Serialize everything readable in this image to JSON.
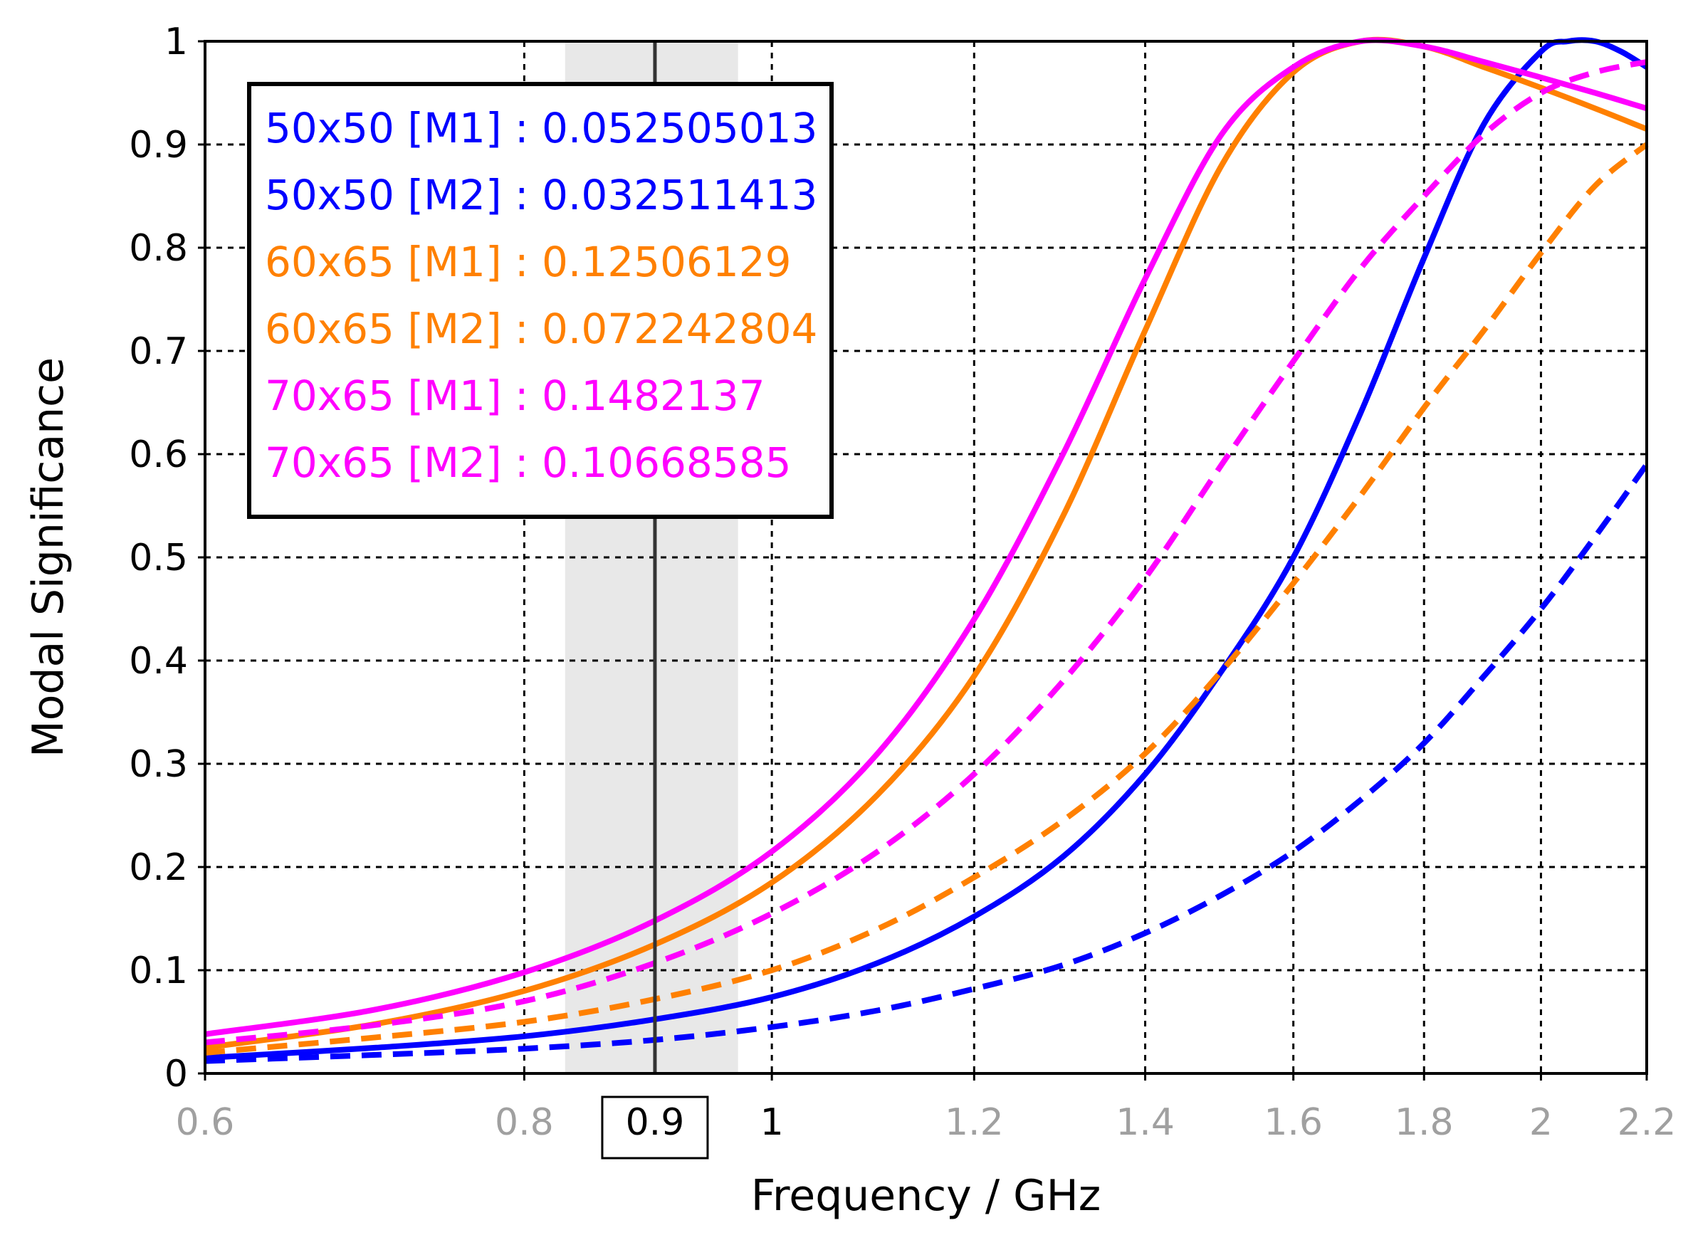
{
  "chart_data": {
    "type": "line",
    "xlabel": "Frequency / GHz",
    "ylabel": "Modal Significance",
    "xscale": "log",
    "xlim": [
      0.6,
      2.2
    ],
    "ylim": [
      0,
      1
    ],
    "grid": true,
    "x_ticks": [
      {
        "label": "0.6",
        "value": 0.6
      },
      {
        "label": "0.8",
        "value": 0.8
      },
      {
        "label": "1",
        "value": 1.0,
        "emphasis": true
      },
      {
        "label": "1.2",
        "value": 1.2
      },
      {
        "label": "1.4",
        "value": 1.4
      },
      {
        "label": "1.6",
        "value": 1.6
      },
      {
        "label": "1.8",
        "value": 1.8
      },
      {
        "label": "2",
        "value": 2.0
      },
      {
        "label": "2.2",
        "value": 2.2
      }
    ],
    "y_ticks": [
      {
        "label": "0",
        "value": 0
      },
      {
        "label": "0.1",
        "value": 0.1
      },
      {
        "label": "0.2",
        "value": 0.2
      },
      {
        "label": "0.3",
        "value": 0.3
      },
      {
        "label": "0.4",
        "value": 0.4
      },
      {
        "label": "0.5",
        "value": 0.5
      },
      {
        "label": "0.6",
        "value": 0.6
      },
      {
        "label": "0.7",
        "value": 0.7
      },
      {
        "label": "0.8",
        "value": 0.8
      },
      {
        "label": "0.9",
        "value": 0.9
      },
      {
        "label": "1",
        "value": 1.0
      }
    ],
    "marker": {
      "value": 0.9,
      "label": "0.9",
      "band": [
        0.83,
        0.97
      ]
    },
    "legend_position": "top-left",
    "series": [
      {
        "name": "50x50 [M1]",
        "readout": "0.052505013",
        "color": "#0000ff",
        "dash": "solid",
        "x": [
          0.6,
          0.7,
          0.8,
          0.9,
          1.0,
          1.1,
          1.2,
          1.3,
          1.4,
          1.5,
          1.6,
          1.7,
          1.8,
          1.9,
          2.0,
          2.05,
          2.1,
          2.15,
          2.2
        ],
        "y": [
          0.015,
          0.025,
          0.036,
          0.0525,
          0.074,
          0.107,
          0.152,
          0.21,
          0.29,
          0.39,
          0.5,
          0.64,
          0.79,
          0.92,
          0.99,
          1.0,
          1.0,
          0.99,
          0.975
        ]
      },
      {
        "name": "50x50 [M2]",
        "readout": "0.032511413",
        "color": "#0000ff",
        "dash": "dashed",
        "x": [
          0.6,
          0.7,
          0.8,
          0.9,
          1.0,
          1.1,
          1.2,
          1.3,
          1.4,
          1.5,
          1.6,
          1.7,
          1.8,
          1.9,
          2.0,
          2.1,
          2.2
        ],
        "y": [
          0.012,
          0.018,
          0.024,
          0.0325,
          0.045,
          0.061,
          0.082,
          0.105,
          0.136,
          0.173,
          0.215,
          0.265,
          0.32,
          0.385,
          0.45,
          0.52,
          0.59
        ]
      },
      {
        "name": "60x65 [M1]",
        "readout": "0.12506129",
        "color": "#ff8000",
        "dash": "solid",
        "x": [
          0.6,
          0.7,
          0.8,
          0.9,
          1.0,
          1.1,
          1.2,
          1.3,
          1.4,
          1.5,
          1.6,
          1.7,
          1.8,
          1.9,
          2.0,
          2.1,
          2.2
        ],
        "y": [
          0.025,
          0.048,
          0.08,
          0.125,
          0.185,
          0.27,
          0.385,
          0.54,
          0.72,
          0.88,
          0.97,
          1.0,
          0.995,
          0.975,
          0.955,
          0.935,
          0.915
        ]
      },
      {
        "name": "60x65 [M2]",
        "readout": "0.072242804",
        "color": "#ff8000",
        "dash": "dashed",
        "x": [
          0.6,
          0.7,
          0.8,
          0.9,
          1.0,
          1.1,
          1.2,
          1.3,
          1.4,
          1.5,
          1.6,
          1.7,
          1.8,
          1.9,
          2.0,
          2.1,
          2.2
        ],
        "y": [
          0.02,
          0.035,
          0.05,
          0.072,
          0.1,
          0.14,
          0.19,
          0.245,
          0.31,
          0.39,
          0.475,
          0.56,
          0.645,
          0.72,
          0.795,
          0.86,
          0.9
        ]
      },
      {
        "name": "70x65 [M1]",
        "readout": "0.1482137",
        "color": "#ff00ff",
        "dash": "solid",
        "x": [
          0.6,
          0.7,
          0.8,
          0.9,
          1.0,
          1.1,
          1.2,
          1.3,
          1.4,
          1.5,
          1.6,
          1.7,
          1.8,
          1.9,
          2.0,
          2.1,
          2.2
        ],
        "y": [
          0.038,
          0.062,
          0.098,
          0.148,
          0.215,
          0.31,
          0.44,
          0.6,
          0.77,
          0.91,
          0.975,
          1.0,
          0.995,
          0.98,
          0.965,
          0.95,
          0.935
        ]
      },
      {
        "name": "70x65 [M2]",
        "readout": "0.10668585",
        "color": "#ff00ff",
        "dash": "dashed",
        "x": [
          0.6,
          0.7,
          0.8,
          0.9,
          1.0,
          1.1,
          1.2,
          1.3,
          1.4,
          1.5,
          1.6,
          1.7,
          1.8,
          1.9,
          2.0,
          2.1,
          2.2
        ],
        "y": [
          0.03,
          0.047,
          0.07,
          0.107,
          0.155,
          0.215,
          0.29,
          0.38,
          0.48,
          0.59,
          0.69,
          0.78,
          0.85,
          0.91,
          0.95,
          0.97,
          0.98
        ]
      }
    ]
  }
}
